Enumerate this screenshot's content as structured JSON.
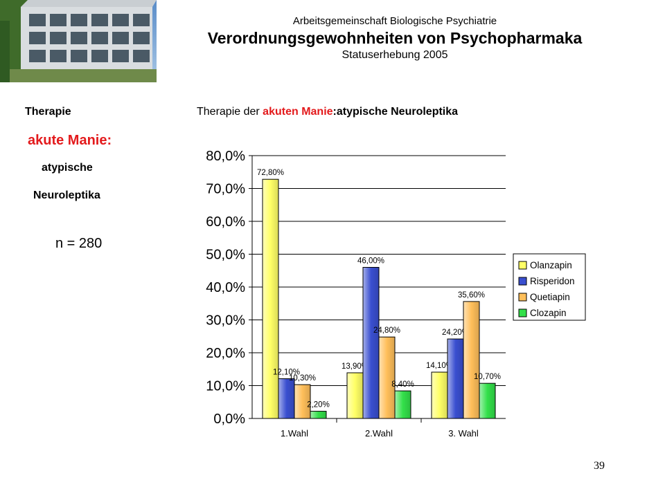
{
  "header": {
    "org": "Arbeitsgemeinschaft Biologische Psychiatrie",
    "title": "Verordnungsgewohnheiten von Psychopharmaka",
    "subtitle": "Statuserhebung 2005"
  },
  "side": {
    "therapie": "Therapie",
    "akute_manie": "akute Manie:",
    "atypische": "atypische",
    "neuroleptika": "Neuroleptika",
    "n": "n = 280"
  },
  "chart_heading": {
    "lead": "Therapie der ",
    "highlight": "akuten Manie",
    "tail": ":atypische Neuroleptika"
  },
  "page_number": "39",
  "colors": {
    "accent_red": "#e31a1c"
  },
  "chart_data": {
    "type": "bar",
    "categories": [
      "1.Wahl",
      "2.Wahl",
      "3. Wahl"
    ],
    "series": [
      {
        "name": "Olanzapin",
        "values": [
          72.8,
          13.9,
          14.1
        ],
        "labels": [
          "72,80%",
          "13,90%",
          "14,10%"
        ],
        "color": "#ffff66"
      },
      {
        "name": "Risperidon",
        "values": [
          12.1,
          46.0,
          24.2
        ],
        "labels": [
          "12,10%",
          "46,00%",
          "24,20%"
        ],
        "color": "#3a4fd0"
      },
      {
        "name": "Quetiapin",
        "values": [
          10.3,
          24.8,
          35.6
        ],
        "labels": [
          "10,30%",
          "24,80%",
          "35,60%"
        ],
        "color": "#ffbf5a"
      },
      {
        "name": "Clozapin",
        "values": [
          2.2,
          8.4,
          10.7
        ],
        "labels": [
          "2,20%",
          "8,40%",
          "10,70%"
        ],
        "color": "#33e04a"
      }
    ],
    "ylim": [
      0,
      80
    ],
    "yticks": [
      "0,0%",
      "10,0%",
      "20,0%",
      "30,0%",
      "40,0%",
      "50,0%",
      "60,0%",
      "70,0%",
      "80,0%"
    ],
    "grid": true,
    "legend": "right"
  }
}
